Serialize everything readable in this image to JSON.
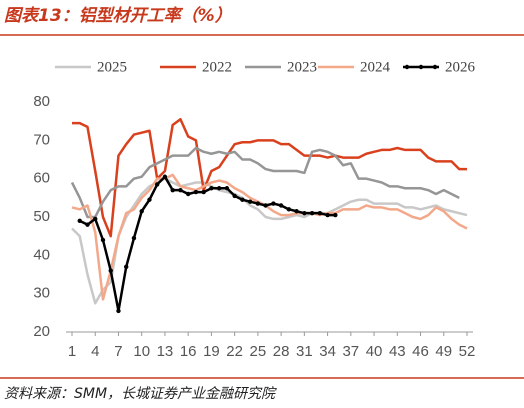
{
  "chart_data": {
    "type": "line",
    "title": "图表13：铝型材开工率（%）",
    "source": "资料来源：SMM，长城证券产业金融研究院",
    "x": [
      1,
      2,
      3,
      4,
      5,
      6,
      7,
      8,
      9,
      10,
      11,
      12,
      13,
      14,
      15,
      16,
      17,
      18,
      19,
      20,
      21,
      22,
      23,
      24,
      25,
      26,
      27,
      28,
      29,
      30,
      31,
      32,
      33,
      34,
      35,
      36,
      37,
      38,
      39,
      40,
      41,
      42,
      43,
      44,
      45,
      46,
      47,
      48,
      49,
      50,
      51,
      52
    ],
    "xlim": [
      1,
      52
    ],
    "xticks": [
      1,
      4,
      7,
      10,
      13,
      16,
      19,
      22,
      25,
      28,
      31,
      34,
      37,
      40,
      43,
      46,
      49,
      52
    ],
    "ylim": [
      20,
      80
    ],
    "yticks": [
      20,
      30,
      40,
      50,
      60,
      70,
      80
    ],
    "series": [
      {
        "name": "2025",
        "color": "#c8c8c8",
        "values": [
          47,
          45,
          35,
          27.5,
          31,
          33,
          45,
          50,
          53,
          56,
          58,
          59,
          60,
          59,
          58,
          58.5,
          59,
          59,
          58,
          57,
          56.5,
          56,
          55,
          53,
          52,
          50,
          49.5,
          49.5,
          50,
          50.5,
          50,
          51,
          51,
          51,
          52,
          53,
          54,
          54.5,
          54.5,
          53.5,
          53.5,
          53.5,
          53.5,
          52.5,
          52.5,
          52,
          52.5,
          53,
          52,
          51.5,
          51,
          50.5
        ]
      },
      {
        "name": "2022",
        "color": "#d9411e",
        "values": [
          74.5,
          74.5,
          73.5,
          62,
          50,
          45,
          66,
          69,
          71.5,
          72,
          72.5,
          60,
          62,
          74,
          75.5,
          71,
          70,
          57,
          62,
          63,
          66,
          69,
          69.5,
          69.5,
          70,
          70,
          70,
          69,
          69,
          67.5,
          66,
          66,
          66,
          65.5,
          66,
          65.5,
          65.5,
          65.5,
          66.5,
          67,
          67.5,
          67.5,
          68,
          67.5,
          67.5,
          67.5,
          65.5,
          64.5,
          64.5,
          64.5,
          62.5,
          62.5
        ]
      },
      {
        "name": "2023",
        "color": "#969696",
        "values": [
          59,
          55,
          50,
          50,
          54,
          57,
          58,
          58,
          60,
          60.5,
          63,
          64,
          65,
          66,
          66,
          66,
          68,
          67,
          66.5,
          67,
          66.5,
          67,
          65,
          65,
          64,
          62.5,
          62,
          62,
          62,
          62,
          61.5,
          67,
          67.5,
          67,
          66,
          63.5,
          64,
          60,
          60,
          59.5,
          59,
          58,
          58,
          57.5,
          57.5,
          57.5,
          57,
          56,
          57,
          56,
          55,
          null
        ]
      },
      {
        "name": "2024",
        "color": "#f4a88a",
        "values": [
          52.5,
          52,
          53,
          46,
          28.5,
          36,
          45,
          51,
          52,
          55,
          57,
          60,
          60,
          61,
          58,
          57.5,
          57,
          58,
          59,
          59.5,
          59,
          57.5,
          56.5,
          55,
          54,
          53,
          51.5,
          50.5,
          50.5,
          51,
          51,
          51,
          50.5,
          51,
          51,
          52,
          52,
          52,
          53,
          52.5,
          52.5,
          52,
          52,
          51,
          50,
          49.5,
          50.5,
          52.5,
          51.5,
          49.5,
          48,
          47
        ]
      },
      {
        "name": "2026",
        "color": "#000000",
        "marker": true,
        "values": [
          null,
          49,
          48,
          49.5,
          44,
          36,
          25.5,
          37,
          44.5,
          51.5,
          54.5,
          58.5,
          60.5,
          57,
          57,
          56,
          56.5,
          56.5,
          57.5,
          57.5,
          57.5,
          55.5,
          54.5,
          54,
          53.5,
          53,
          53.5,
          53,
          52,
          51.5,
          51,
          51,
          51,
          50.5,
          50.5,
          null,
          null,
          null,
          null,
          null,
          null,
          null,
          null,
          null,
          null,
          null,
          null,
          null,
          null,
          null,
          null,
          null
        ]
      }
    ]
  }
}
